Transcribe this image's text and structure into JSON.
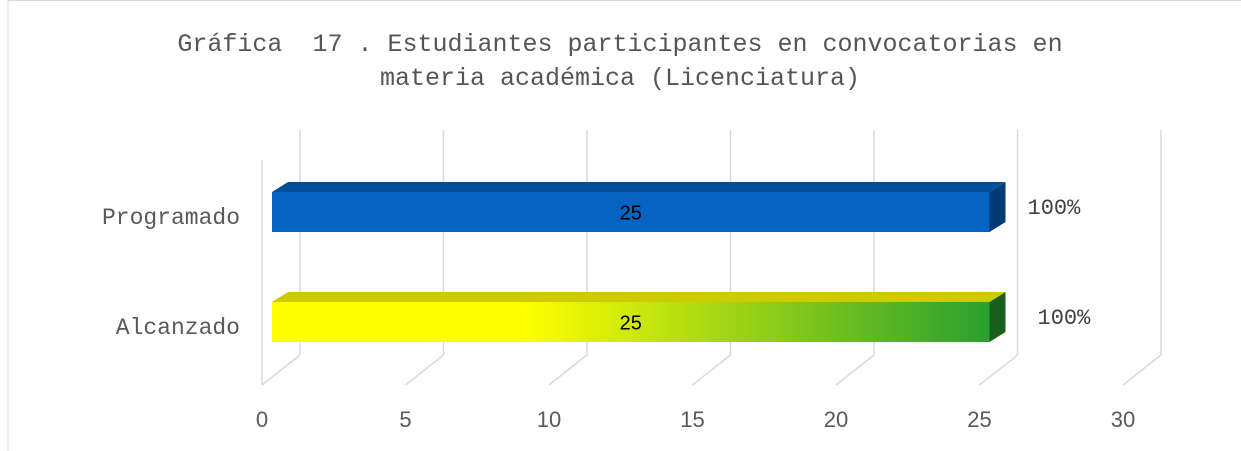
{
  "chart_data": {
    "type": "bar3d_horizontal",
    "title": "Gráfica  17 . Estudiantes participantes en convocatorias en materia académica (Licenciatura)",
    "categories": [
      "Programado",
      "Alcanzado"
    ],
    "values": [
      25,
      25
    ],
    "annotations": [
      "100%",
      "100%"
    ],
    "bar_colors": [
      [
        "#0563c1",
        "#0563c1"
      ],
      [
        "#ffff00",
        "#2a9f30"
      ]
    ],
    "xlim": [
      0,
      30
    ],
    "xticks": [
      0,
      5,
      10,
      15,
      20,
      25,
      30
    ],
    "grid": true
  }
}
